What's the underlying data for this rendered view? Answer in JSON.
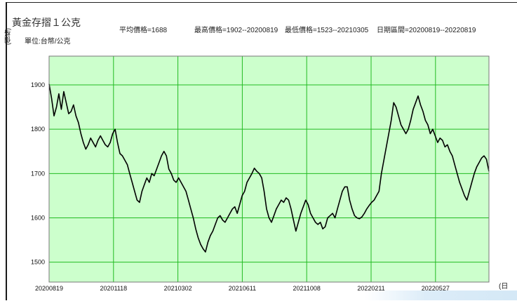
{
  "header": {
    "title": "黃金存摺１公克",
    "unit": "單位:台幣/公克",
    "avg": "平均價格=1688",
    "high": "最高價格=1902--20200819",
    "low": "最低價格=1523--20210305",
    "range": "日期區間=20200819--20220819",
    "y_axis_label": "(價格)",
    "x_axis_label": "(日期)"
  },
  "colors": {
    "plot_bg": "#ccffcc",
    "grid": "#22bb22",
    "line": "#000000"
  },
  "chart_data": {
    "type": "line",
    "title": "黃金存摺１公克",
    "xlabel": "(日期)",
    "ylabel": "(價格)",
    "ylim": [
      1455,
      1965
    ],
    "y_ticks": [
      "1500",
      "1600",
      "1700",
      "1800",
      "1900"
    ],
    "x_ticks": [
      "20200819",
      "20201118",
      "20210302",
      "20210611",
      "20211008",
      "20220211",
      "20220527"
    ],
    "grid": true,
    "series": [
      {
        "values": [
          1902,
          1870,
          1830,
          1850,
          1880,
          1845,
          1885,
          1860,
          1835,
          1840,
          1855,
          1830,
          1815,
          1790,
          1770,
          1755,
          1765,
          1780,
          1770,
          1760,
          1775,
          1785,
          1775,
          1765,
          1760,
          1770,
          1790,
          1800,
          1770,
          1745,
          1740,
          1730,
          1720,
          1700,
          1680,
          1660,
          1640,
          1635,
          1660,
          1675,
          1690,
          1680,
          1700,
          1695,
          1710,
          1725,
          1740,
          1750,
          1740,
          1710,
          1700,
          1685,
          1680,
          1690,
          1680,
          1670,
          1660,
          1640,
          1620,
          1600,
          1575,
          1555,
          1540,
          1530,
          1523,
          1545,
          1560,
          1570,
          1585,
          1600,
          1605,
          1595,
          1590,
          1600,
          1610,
          1620,
          1625,
          1610,
          1630,
          1650,
          1660,
          1680,
          1690,
          1700,
          1712,
          1705,
          1700,
          1690,
          1660,
          1620,
          1600,
          1590,
          1605,
          1620,
          1630,
          1640,
          1635,
          1645,
          1640,
          1620,
          1595,
          1570,
          1590,
          1610,
          1625,
          1640,
          1630,
          1610,
          1600,
          1590,
          1585,
          1590,
          1575,
          1580,
          1600,
          1605,
          1610,
          1600,
          1620,
          1640,
          1660,
          1670,
          1670,
          1640,
          1620,
          1605,
          1600,
          1598,
          1602,
          1610,
          1620,
          1628,
          1635,
          1640,
          1650,
          1660,
          1700,
          1730,
          1760,
          1790,
          1820,
          1860,
          1850,
          1830,
          1810,
          1800,
          1790,
          1800,
          1820,
          1845,
          1860,
          1875,
          1855,
          1840,
          1820,
          1810,
          1790,
          1800,
          1785,
          1770,
          1780,
          1775,
          1760,
          1765,
          1750,
          1740,
          1720,
          1700,
          1680,
          1665,
          1650,
          1640,
          1660,
          1680,
          1700,
          1715,
          1725,
          1735,
          1740,
          1732,
          1705
        ]
      }
    ]
  }
}
